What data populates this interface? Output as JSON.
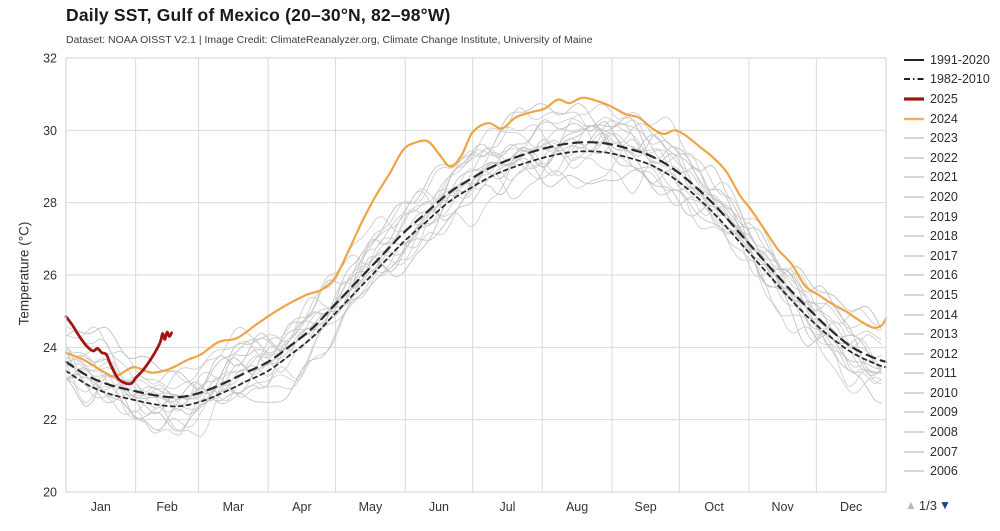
{
  "header": {
    "title": "Daily SST, Gulf of Mexico (20–30°N, 82–98°W)",
    "subtitle": "Dataset: NOAA OISST V2.1 | Image Credit: ClimateReanalyzer.org, Climate Change Institute, University of Maine"
  },
  "chart_data": {
    "type": "line",
    "title": "Daily SST, Gulf of Mexico (20–30°N, 82–98°W)",
    "subtitle": "Dataset: NOAA OISST V2.1 | Image Credit: ClimateReanalyzer.org, Climate Change Institute, University of Maine",
    "xlabel": "",
    "ylabel": "Temperature (°C)",
    "ylim": [
      20,
      32
    ],
    "yticks": [
      20,
      22,
      24,
      26,
      28,
      30,
      32
    ],
    "x_months": [
      "Jan",
      "Feb",
      "Mar",
      "Apr",
      "May",
      "Jun",
      "Jul",
      "Aug",
      "Sep",
      "Oct",
      "Nov",
      "Dec"
    ],
    "month_start_days": [
      0,
      31,
      59,
      90,
      120,
      151,
      181,
      212,
      243,
      273,
      304,
      334,
      365
    ],
    "grid": true,
    "legend_position": "right",
    "series": [
      {
        "name": "1991-2020",
        "role": "climatology-mean",
        "color": "#2a2a2a",
        "dash": "9 6",
        "width": 2.2,
        "points": [
          [
            0,
            23.6
          ],
          [
            10,
            23.2
          ],
          [
            20,
            22.95
          ],
          [
            30,
            22.8
          ],
          [
            40,
            22.67
          ],
          [
            50,
            22.62
          ],
          [
            60,
            22.75
          ],
          [
            70,
            23.0
          ],
          [
            80,
            23.3
          ],
          [
            90,
            23.6
          ],
          [
            100,
            24.05
          ],
          [
            110,
            24.55
          ],
          [
            120,
            25.2
          ],
          [
            130,
            25.85
          ],
          [
            140,
            26.5
          ],
          [
            150,
            27.15
          ],
          [
            160,
            27.7
          ],
          [
            170,
            28.25
          ],
          [
            180,
            28.65
          ],
          [
            190,
            29.0
          ],
          [
            200,
            29.25
          ],
          [
            210,
            29.45
          ],
          [
            220,
            29.6
          ],
          [
            230,
            29.67
          ],
          [
            240,
            29.64
          ],
          [
            250,
            29.5
          ],
          [
            260,
            29.3
          ],
          [
            270,
            28.95
          ],
          [
            280,
            28.45
          ],
          [
            290,
            27.85
          ],
          [
            300,
            27.15
          ],
          [
            310,
            26.45
          ],
          [
            320,
            25.75
          ],
          [
            330,
            25.1
          ],
          [
            340,
            24.5
          ],
          [
            350,
            24.0
          ],
          [
            360,
            23.7
          ],
          [
            365,
            23.6
          ]
        ]
      },
      {
        "name": "1982-2010",
        "role": "climatology-mean",
        "color": "#2a2a2a",
        "dash": "4 4",
        "width": 1.8,
        "points": [
          [
            0,
            23.35
          ],
          [
            10,
            22.95
          ],
          [
            20,
            22.7
          ],
          [
            30,
            22.55
          ],
          [
            40,
            22.42
          ],
          [
            50,
            22.37
          ],
          [
            60,
            22.5
          ],
          [
            70,
            22.75
          ],
          [
            80,
            23.05
          ],
          [
            90,
            23.35
          ],
          [
            100,
            23.8
          ],
          [
            110,
            24.3
          ],
          [
            120,
            24.95
          ],
          [
            130,
            25.6
          ],
          [
            140,
            26.25
          ],
          [
            150,
            26.9
          ],
          [
            160,
            27.45
          ],
          [
            170,
            28.0
          ],
          [
            180,
            28.4
          ],
          [
            190,
            28.75
          ],
          [
            200,
            29.0
          ],
          [
            210,
            29.2
          ],
          [
            220,
            29.35
          ],
          [
            230,
            29.42
          ],
          [
            240,
            29.39
          ],
          [
            250,
            29.25
          ],
          [
            260,
            29.05
          ],
          [
            270,
            28.7
          ],
          [
            280,
            28.2
          ],
          [
            290,
            27.6
          ],
          [
            300,
            26.9
          ],
          [
            310,
            26.2
          ],
          [
            320,
            25.5
          ],
          [
            330,
            24.85
          ],
          [
            340,
            24.3
          ],
          [
            350,
            23.85
          ],
          [
            360,
            23.55
          ],
          [
            365,
            23.45
          ]
        ]
      },
      {
        "name": "2025",
        "role": "current-year",
        "color": "#a31515",
        "dash": "",
        "width": 2.8,
        "points": [
          [
            0,
            24.85
          ],
          [
            3,
            24.6
          ],
          [
            6,
            24.3
          ],
          [
            9,
            24.05
          ],
          [
            12,
            23.9
          ],
          [
            14,
            23.97
          ],
          [
            16,
            23.85
          ],
          [
            18,
            23.8
          ],
          [
            20,
            23.5
          ],
          [
            23,
            23.15
          ],
          [
            26,
            23.02
          ],
          [
            29,
            23.0
          ],
          [
            31,
            23.15
          ],
          [
            34,
            23.35
          ],
          [
            37,
            23.6
          ],
          [
            40,
            23.9
          ],
          [
            42,
            24.15
          ],
          [
            43,
            24.38
          ],
          [
            44,
            24.22
          ],
          [
            45,
            24.42
          ],
          [
            46,
            24.3
          ],
          [
            47,
            24.4
          ]
        ]
      },
      {
        "name": "2024",
        "role": "previous-year",
        "color": "#f0a445",
        "dash": "",
        "width": 2.2,
        "points": [
          [
            0,
            23.85
          ],
          [
            8,
            23.65
          ],
          [
            16,
            23.35
          ],
          [
            22,
            23.2
          ],
          [
            30,
            23.45
          ],
          [
            38,
            23.3
          ],
          [
            46,
            23.4
          ],
          [
            54,
            23.65
          ],
          [
            60,
            23.8
          ],
          [
            68,
            24.15
          ],
          [
            76,
            24.25
          ],
          [
            84,
            24.6
          ],
          [
            91,
            24.9
          ],
          [
            99,
            25.2
          ],
          [
            107,
            25.45
          ],
          [
            114,
            25.6
          ],
          [
            120,
            25.95
          ],
          [
            126,
            26.7
          ],
          [
            132,
            27.5
          ],
          [
            138,
            28.2
          ],
          [
            144,
            28.8
          ],
          [
            150,
            29.45
          ],
          [
            155,
            29.65
          ],
          [
            161,
            29.7
          ],
          [
            166,
            29.35
          ],
          [
            171,
            29.0
          ],
          [
            176,
            29.3
          ],
          [
            181,
            29.95
          ],
          [
            188,
            30.2
          ],
          [
            194,
            30.05
          ],
          [
            200,
            30.35
          ],
          [
            207,
            30.5
          ],
          [
            213,
            30.6
          ],
          [
            219,
            30.85
          ],
          [
            224,
            30.75
          ],
          [
            230,
            30.9
          ],
          [
            237,
            30.8
          ],
          [
            243,
            30.65
          ],
          [
            249,
            30.45
          ],
          [
            255,
            30.35
          ],
          [
            261,
            30.05
          ],
          [
            266,
            29.9
          ],
          [
            271,
            30.0
          ],
          [
            276,
            29.85
          ],
          [
            282,
            29.55
          ],
          [
            288,
            29.25
          ],
          [
            294,
            28.85
          ],
          [
            300,
            28.2
          ],
          [
            305,
            27.8
          ],
          [
            311,
            27.25
          ],
          [
            317,
            26.7
          ],
          [
            323,
            26.3
          ],
          [
            329,
            25.7
          ],
          [
            335,
            25.45
          ],
          [
            341,
            25.2
          ],
          [
            347,
            25.0
          ],
          [
            353,
            24.75
          ],
          [
            359,
            24.55
          ],
          [
            363,
            24.6
          ],
          [
            365,
            24.8
          ]
        ]
      }
    ],
    "ensemble_years": [
      2023,
      2022,
      2021,
      2020,
      2019,
      2018,
      2017,
      2016,
      2015,
      2014,
      2013,
      2012,
      2011,
      2010,
      2009,
      2008,
      2007,
      2006
    ],
    "ensemble_color": "#cbcbcb"
  },
  "legend": {
    "entries": [
      {
        "label": "1991-2020",
        "color": "#222222",
        "style": "solid"
      },
      {
        "label": "1982-2010",
        "color": "#222222",
        "style": "dashdot"
      },
      {
        "label": "2025",
        "color": "#a31515",
        "style": "thick"
      },
      {
        "label": "2024",
        "color": "#f3b061",
        "style": "medium"
      },
      {
        "label": "2023",
        "color": "#c9c9c9",
        "style": "plain"
      },
      {
        "label": "2022",
        "color": "#c9c9c9",
        "style": "plain"
      },
      {
        "label": "2021",
        "color": "#c9c9c9",
        "style": "plain"
      },
      {
        "label": "2020",
        "color": "#c9c9c9",
        "style": "plain"
      },
      {
        "label": "2019",
        "color": "#c9c9c9",
        "style": "plain"
      },
      {
        "label": "2018",
        "color": "#c9c9c9",
        "style": "plain"
      },
      {
        "label": "2017",
        "color": "#c9c9c9",
        "style": "plain"
      },
      {
        "label": "2016",
        "color": "#c9c9c9",
        "style": "plain"
      },
      {
        "label": "2015",
        "color": "#c9c9c9",
        "style": "plain"
      },
      {
        "label": "2014",
        "color": "#c9c9c9",
        "style": "plain"
      },
      {
        "label": "2013",
        "color": "#c9c9c9",
        "style": "plain"
      },
      {
        "label": "2012",
        "color": "#c9c9c9",
        "style": "plain"
      },
      {
        "label": "2011",
        "color": "#c9c9c9",
        "style": "plain"
      },
      {
        "label": "2010",
        "color": "#c9c9c9",
        "style": "plain"
      },
      {
        "label": "2009",
        "color": "#c9c9c9",
        "style": "plain"
      },
      {
        "label": "2008",
        "color": "#c9c9c9",
        "style": "plain"
      },
      {
        "label": "2007",
        "color": "#c9c9c9",
        "style": "plain"
      },
      {
        "label": "2006",
        "color": "#c9c9c9",
        "style": "plain"
      }
    ],
    "pager": {
      "up_icon": "▲",
      "label": "1/3",
      "down_icon": "▼",
      "up_color": "#b8b8b8",
      "down_color": "#1d3f8f"
    }
  },
  "colors": {
    "grid": "#d9d9d9",
    "axis_text": "#333333",
    "title_text": "#1a1a1a",
    "line_2025": "#a31515",
    "line_2024": "#f0a445",
    "climatology": "#2a2a2a",
    "ensemble": "#cbcbcb"
  }
}
